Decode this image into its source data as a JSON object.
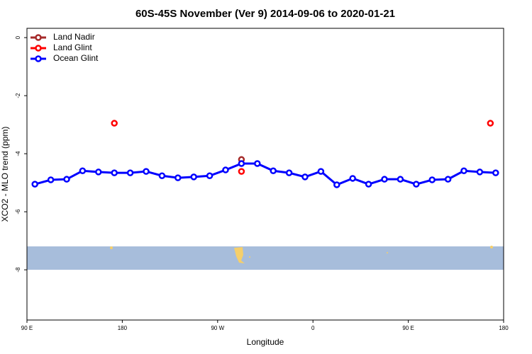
{
  "chart_data": {
    "type": "line",
    "title": "60S-45S November (Ver 9)   2014-09-06 to 2020-01-21",
    "xlabel": "Longitude",
    "ylabel": "XCO2 - MLO trend (ppm)",
    "xlim": [
      90,
      540
    ],
    "ylim": [
      -9.73,
      0.32
    ],
    "xticks": [
      {
        "value": 90,
        "label": "90 E"
      },
      {
        "value": 180,
        "label": "180"
      },
      {
        "value": 270,
        "label": "90 W"
      },
      {
        "value": 360,
        "label": "0"
      },
      {
        "value": 450,
        "label": "90 E"
      },
      {
        "value": 540,
        "label": "180"
      }
    ],
    "yticks": [
      0,
      -2,
      -4,
      -6,
      -8
    ],
    "legend": "upper left",
    "series": [
      {
        "name": "Land Nadir",
        "color": "#a52a2a",
        "type": "scatter",
        "x": [
          292.5
        ],
        "values": [
          -4.2
        ]
      },
      {
        "name": "Land Glint",
        "color": "#ff0000",
        "type": "scatter",
        "x": [
          172.5,
          292.5,
          527.5
        ],
        "values": [
          -2.95,
          -4.61,
          -2.95
        ]
      },
      {
        "name": "Ocean Glint",
        "color": "#0000ff",
        "type": "line",
        "x": [
          97.5,
          112.5,
          127.5,
          142.5,
          157.5,
          172.5,
          187.5,
          202.5,
          217.5,
          232.5,
          247.5,
          262.5,
          277.5,
          292.5,
          307.5,
          322.5,
          337.5,
          352.5,
          367.5,
          382.5,
          397.5,
          412.5,
          427.5,
          442.5,
          457.5,
          472.5,
          487.5,
          502.5,
          517.5,
          532.5
        ],
        "values": [
          -5.05,
          -4.9,
          -4.88,
          -4.59,
          -4.63,
          -4.66,
          -4.66,
          -4.61,
          -4.76,
          -4.83,
          -4.8,
          -4.76,
          -4.56,
          -4.34,
          -4.34,
          -4.59,
          -4.66,
          -4.8,
          -4.61,
          -5.07,
          -4.85,
          -5.05,
          -4.88,
          -4.88,
          -5.05,
          -4.9,
          -4.88,
          -4.59,
          -4.63,
          -4.66
        ]
      }
    ]
  }
}
